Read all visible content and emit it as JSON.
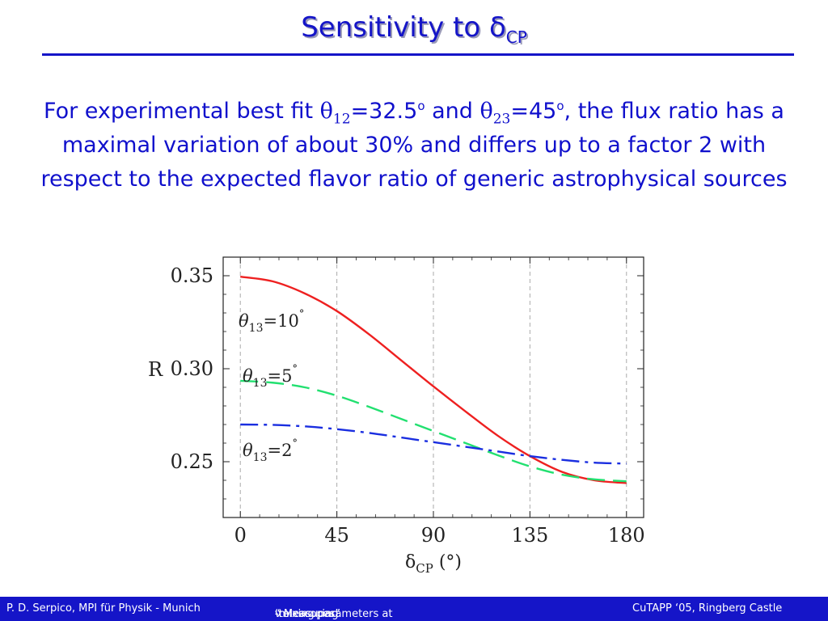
{
  "slide": {
    "title_main": "Sensitivity to δ",
    "title_sub": "CP",
    "paragraph": {
      "p1": "For experimental best fit ",
      "theta": "θ",
      "sub12": "12",
      "eq1": "=32.5",
      "deg1": "o",
      "and": " and ",
      "sub23": "23",
      "eq2": "=45",
      "deg2": "o",
      "p2": ", the flux ratio has a maximal variation of about 30% and differs up to a factor 2 with respect to the expected flavor ratio of generic astrophysical sources"
    }
  },
  "chart_data": {
    "type": "line",
    "xlabel": "δ_CP (°)",
    "ylabel": "R",
    "xlim": [
      -8,
      188
    ],
    "ylim": [
      0.22,
      0.36
    ],
    "xticks": [
      0,
      45,
      90,
      135,
      180
    ],
    "xtick_labels": [
      "0",
      "45",
      "90",
      "135",
      "180"
    ],
    "yticks": [
      0.25,
      0.3,
      0.35
    ],
    "ytick_labels": [
      "0.25",
      "0.30",
      "0.35"
    ],
    "vertical_dashed_gridlines": [
      0,
      45,
      90,
      135,
      180
    ],
    "x": [
      0,
      15,
      30,
      45,
      60,
      75,
      90,
      105,
      120,
      135,
      150,
      165,
      180
    ],
    "series": [
      {
        "label": "θ13=10°",
        "label_main": "θ",
        "label_sub": "13",
        "label_eq": "=10",
        "label_deg": "°",
        "color": "#ee2020",
        "style": "solid",
        "values": [
          0.3495,
          0.347,
          0.3405,
          0.331,
          0.3185,
          0.3045,
          0.2905,
          0.277,
          0.264,
          0.253,
          0.2445,
          0.24,
          0.2385
        ]
      },
      {
        "label": "θ13=5°",
        "label_main": "θ",
        "label_sub": "13",
        "label_eq": "=5",
        "label_deg": "°",
        "color": "#22e070",
        "style": "dashed",
        "values": [
          0.2935,
          0.2925,
          0.29,
          0.2855,
          0.2795,
          0.273,
          0.2665,
          0.26,
          0.2535,
          0.2475,
          0.243,
          0.2405,
          0.2395
        ]
      },
      {
        "label": "θ13=2°",
        "label_main": "θ",
        "label_sub": "13",
        "label_eq": "=2",
        "label_deg": "°",
        "color": "#1a2ee0",
        "style": "dashdot",
        "values": [
          0.27,
          0.2698,
          0.269,
          0.2675,
          0.2655,
          0.263,
          0.2605,
          0.258,
          0.2555,
          0.253,
          0.251,
          0.2495,
          0.249
        ]
      }
    ]
  },
  "footer": {
    "author": "P. D. Serpico,  MPI für Physik - Munich",
    "talk_pre": "“ Measuring ",
    "nu1": "ν",
    "talk_mid": "-mixing parameters at ",
    "nu2": "ν",
    "talk_post": "-telescopes”",
    "conference": "CuTAPP ‘05, Ringberg Castle"
  }
}
